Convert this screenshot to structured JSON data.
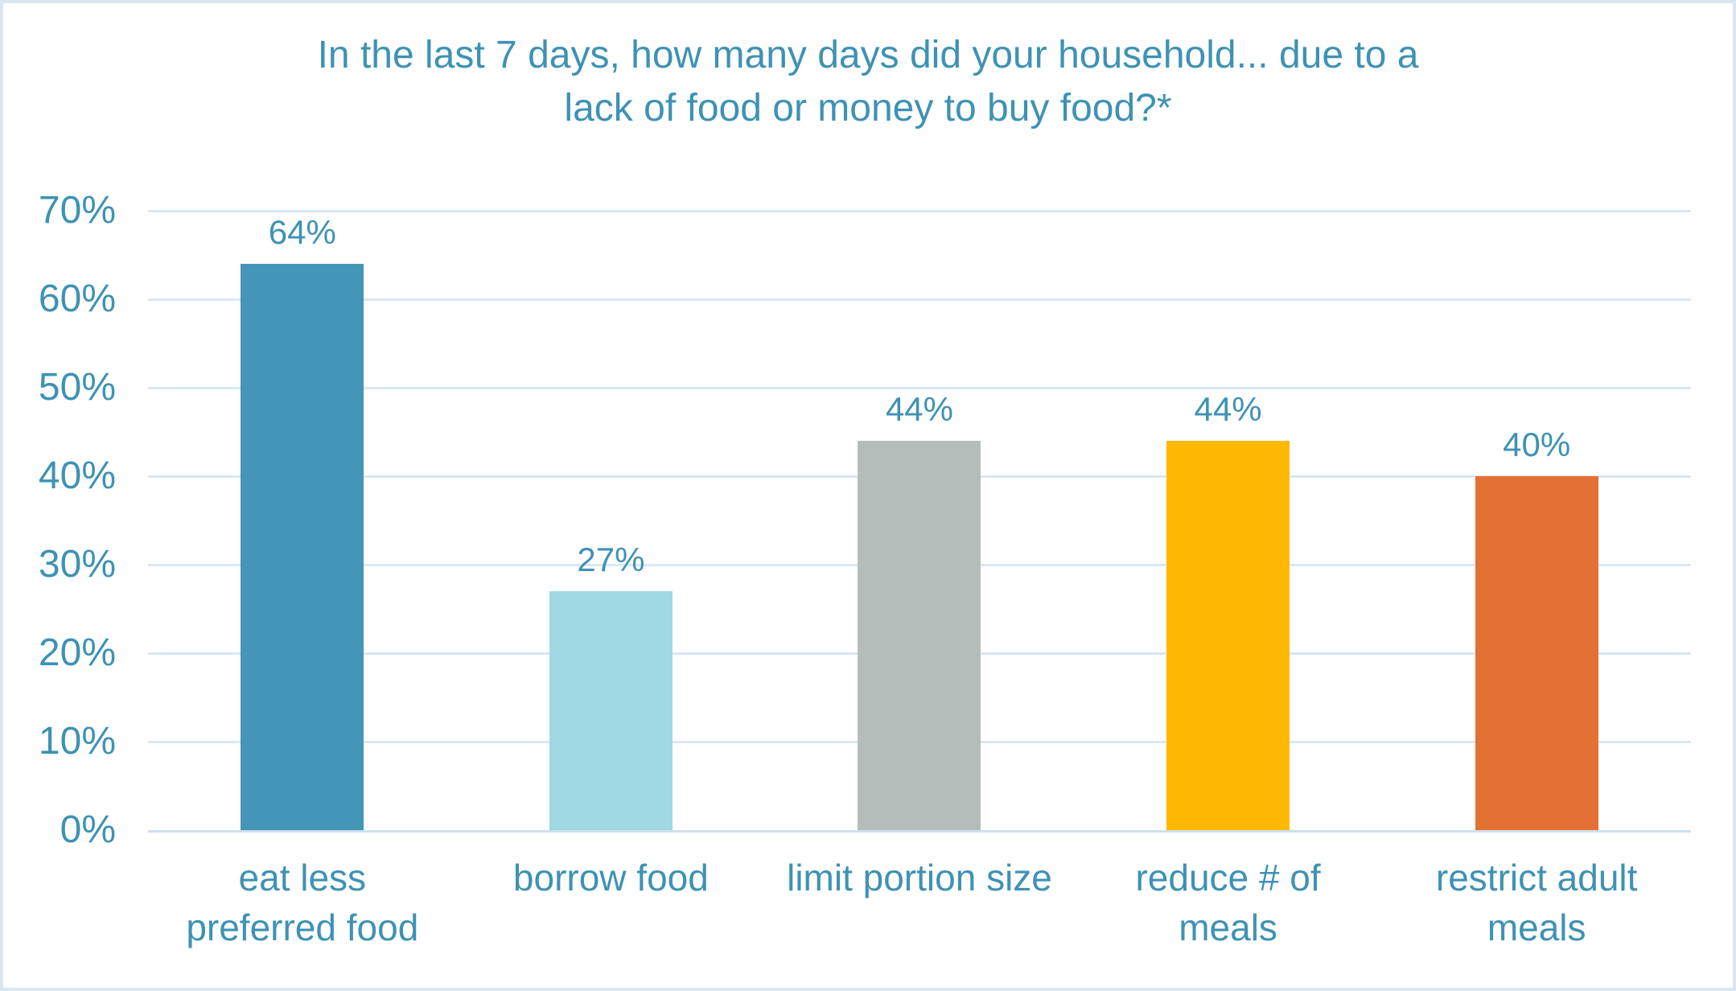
{
  "title": "In the last 7 days, how many days did your household... due to a\nlack of food or money to buy food?*",
  "theme": {
    "text_color": "#3e92b4",
    "gridline_color": "#dbe7f2",
    "axis_line_color": "#cfe0ec",
    "border_color": "#d9e5ef",
    "background_color": "#ffffff"
  },
  "chart_data": {
    "type": "bar",
    "title": "In the last 7 days, how many days did your household... due to a lack of food or money to buy food?*",
    "categories": [
      "eat less preferred food",
      "borrow food",
      "limit portion size",
      "reduce # of meals",
      "restrict adult meals"
    ],
    "category_lines": [
      [
        "eat less",
        "preferred food"
      ],
      [
        "borrow food"
      ],
      [
        "limit portion size"
      ],
      [
        "reduce # of",
        "meals"
      ],
      [
        "restrict adult",
        "meals"
      ]
    ],
    "values": [
      64,
      27,
      44,
      44,
      40
    ],
    "value_labels": [
      "64%",
      "27%",
      "44%",
      "44%",
      "40%"
    ],
    "colors": [
      "#4496b8",
      "#a0d8e4",
      "#b5bdbb",
      "#ffb902",
      "#e37134"
    ],
    "y_ticks": [
      "70%",
      "60%",
      "50%",
      "40%",
      "30%",
      "20%",
      "10%",
      "0%"
    ],
    "ylim": [
      0,
      70
    ],
    "xlabel": "",
    "ylabel": "",
    "grid": true,
    "legend": false
  }
}
